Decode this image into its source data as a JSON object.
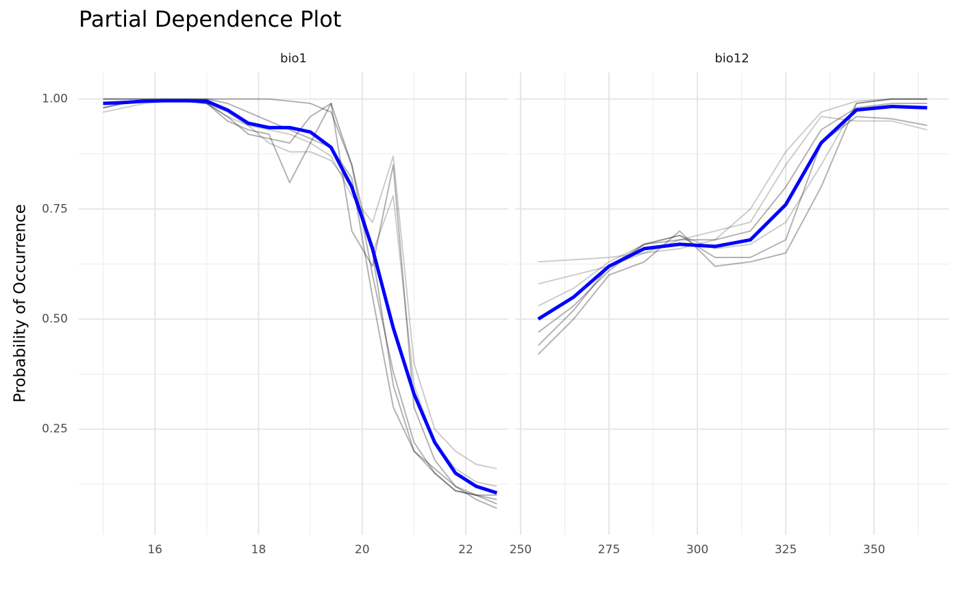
{
  "title": "Partial Dependence Plot",
  "y_label": "Probability of Occurrence",
  "chart_data": [
    {
      "type": "line",
      "title": "bio1",
      "xlim": [
        14.53,
        22.82
      ],
      "xticks": [
        16,
        18,
        20,
        22
      ],
      "x_minor_ticks": [
        15,
        17,
        19,
        21
      ],
      "ylim": [
        0.01,
        1.06
      ],
      "yticks": [
        {
          "value": 0.25,
          "label": "0.25"
        },
        {
          "value": 0.5,
          "label": "0.50"
        },
        {
          "value": 0.75,
          "label": "0.75"
        },
        {
          "value": 1,
          "label": "1.00"
        }
      ],
      "y_minor_ticks": [
        0.125,
        0.375,
        0.625,
        0.875
      ],
      "grid": true,
      "x": [
        15,
        15.4,
        15.8,
        16.2,
        16.6,
        17,
        17.4,
        17.8,
        18.2,
        18.6,
        19,
        19.4,
        19.8,
        20.2,
        20.6,
        21,
        21.4,
        21.8,
        22.2,
        22.6
      ],
      "series": [
        {
          "color": "#000000",
          "opacity": 0.3,
          "values": [
            1,
            1,
            1,
            1,
            1,
            1,
            1,
            1,
            1,
            0.995,
            0.99,
            0.97,
            0.85,
            0.6,
            0.38,
            0.22,
            0.15,
            0.11,
            0.1,
            0.1
          ]
        },
        {
          "color": "#000000",
          "opacity": 0.3,
          "values": [
            0.98,
            0.99,
            0.995,
            0.995,
            0.995,
            0.99,
            0.95,
            0.93,
            0.92,
            0.81,
            0.9,
            0.99,
            0.85,
            0.65,
            0.35,
            0.2,
            0.15,
            0.11,
            0.1,
            0.09
          ]
        },
        {
          "color": "#000000",
          "opacity": 0.2,
          "values": [
            0.97,
            0.98,
            0.99,
            0.995,
            0.995,
            0.99,
            0.96,
            0.94,
            0.93,
            0.92,
            0.9,
            0.87,
            0.78,
            0.72,
            0.87,
            0.4,
            0.25,
            0.2,
            0.17,
            0.16
          ]
        },
        {
          "color": "#000000",
          "opacity": 0.2,
          "values": [
            0.99,
            0.995,
            0.995,
            0.995,
            0.995,
            0.99,
            0.97,
            0.94,
            0.9,
            0.88,
            0.88,
            0.86,
            0.8,
            0.65,
            0.78,
            0.35,
            0.22,
            0.16,
            0.13,
            0.12
          ]
        },
        {
          "color": "#000000",
          "opacity": 0.3,
          "values": [
            0.98,
            0.99,
            0.995,
            0.995,
            0.995,
            0.99,
            0.96,
            0.92,
            0.91,
            0.9,
            0.96,
            0.99,
            0.7,
            0.62,
            0.85,
            0.3,
            0.18,
            0.12,
            0.09,
            0.07
          ]
        },
        {
          "color": "#000000",
          "opacity": 0.3,
          "values": [
            1,
            1,
            1,
            1,
            1,
            1,
            0.99,
            0.97,
            0.95,
            0.93,
            0.91,
            0.89,
            0.82,
            0.55,
            0.3,
            0.2,
            0.16,
            0.12,
            0.1,
            0.08
          ]
        },
        {
          "color": "#0000ff",
          "opacity": 1,
          "width": 5,
          "values": [
            0.99,
            0.992,
            0.995,
            0.996,
            0.996,
            0.995,
            0.975,
            0.945,
            0.935,
            0.935,
            0.925,
            0.89,
            0.8,
            0.66,
            0.48,
            0.33,
            0.22,
            0.15,
            0.12,
            0.105
          ]
        }
      ]
    },
    {
      "type": "line",
      "title": "bio12",
      "xlim": [
        248.45,
        371.1
      ],
      "xticks": [
        250,
        275,
        300,
        325,
        350
      ],
      "x_minor_ticks": [
        262.5,
        287.5,
        312.5,
        337.5,
        362.5
      ],
      "ylim": [
        0.01,
        1.06
      ],
      "yticks": [
        0.25,
        0.5,
        0.75,
        1
      ],
      "y_minor_ticks": [
        0.125,
        0.375,
        0.625,
        0.875
      ],
      "grid": true,
      "x": [
        255,
        265,
        275,
        285,
        295,
        305,
        315,
        325,
        335,
        345,
        355,
        365
      ],
      "series": [
        {
          "color": "#000000",
          "opacity": 0.3,
          "values": [
            0.42,
            0.5,
            0.6,
            0.63,
            0.7,
            0.62,
            0.63,
            0.65,
            0.8,
            0.99,
            1,
            1
          ]
        },
        {
          "color": "#000000",
          "opacity": 0.2,
          "values": [
            0.63,
            0.635,
            0.64,
            0.65,
            0.66,
            0.68,
            0.75,
            0.88,
            0.97,
            0.995,
            1,
            1
          ]
        },
        {
          "color": "#000000",
          "opacity": 0.3,
          "values": [
            0.44,
            0.52,
            0.62,
            0.67,
            0.69,
            0.64,
            0.64,
            0.68,
            0.9,
            0.96,
            0.955,
            0.94
          ]
        },
        {
          "color": "#000000",
          "opacity": 0.2,
          "values": [
            0.58,
            0.6,
            0.62,
            0.65,
            0.68,
            0.7,
            0.72,
            0.85,
            0.96,
            0.95,
            0.95,
            0.93
          ]
        },
        {
          "color": "#000000",
          "opacity": 0.2,
          "values": [
            0.53,
            0.57,
            0.63,
            0.67,
            0.69,
            0.66,
            0.67,
            0.72,
            0.85,
            0.99,
            1,
            1
          ]
        },
        {
          "color": "#000000",
          "opacity": 0.3,
          "values": [
            0.47,
            0.53,
            0.61,
            0.67,
            0.68,
            0.68,
            0.7,
            0.8,
            0.93,
            0.98,
            0.99,
            0.99
          ]
        },
        {
          "color": "#0000ff",
          "opacity": 1,
          "width": 5,
          "values": [
            0.5,
            0.55,
            0.62,
            0.66,
            0.67,
            0.665,
            0.68,
            0.76,
            0.9,
            0.975,
            0.983,
            0.98
          ]
        }
      ]
    }
  ]
}
